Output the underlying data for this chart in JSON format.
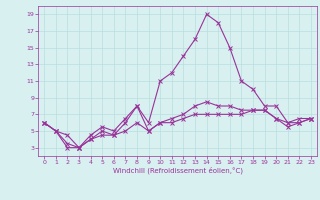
{
  "xlabel": "Windchill (Refroidissement éolien,°C)",
  "x": [
    0,
    1,
    2,
    3,
    4,
    5,
    6,
    7,
    8,
    9,
    10,
    11,
    12,
    13,
    14,
    15,
    16,
    17,
    18,
    19,
    20,
    21,
    22,
    23
  ],
  "line1": [
    6,
    5,
    3.5,
    3,
    4.5,
    5.5,
    5,
    6.5,
    8,
    5,
    6,
    6,
    6.5,
    7,
    7,
    7,
    7,
    7,
    7.5,
    7.5,
    6.5,
    6,
    6.5,
    6.5
  ],
  "line2": [
    6,
    5,
    4.5,
    3,
    4,
    4.5,
    4.5,
    5,
    6,
    5,
    6,
    6.5,
    7,
    8,
    8.5,
    8,
    8,
    7.5,
    7.5,
    7.5,
    6.5,
    5.5,
    6,
    6.5
  ],
  "line3": [
    6,
    5,
    3,
    3,
    4,
    5,
    4.5,
    6,
    8,
    6,
    11,
    12,
    14,
    16,
    19,
    18,
    15,
    11,
    10,
    8,
    8,
    6,
    6,
    6.5
  ],
  "background_color": "#d8f0f0",
  "grid_color": "#b8dede",
  "line_color": "#993399",
  "ylim": [
    2,
    20
  ],
  "xlim": [
    -0.5,
    23.5
  ],
  "yticks": [
    3,
    5,
    7,
    9,
    11,
    13,
    15,
    17,
    19
  ],
  "xticks": [
    0,
    1,
    2,
    3,
    4,
    5,
    6,
    7,
    8,
    9,
    10,
    11,
    12,
    13,
    14,
    15,
    16,
    17,
    18,
    19,
    20,
    21,
    22,
    23
  ],
  "tick_fontsize": 4.5,
  "xlabel_fontsize": 5.0,
  "linewidth": 0.8,
  "markersize": 2.5
}
